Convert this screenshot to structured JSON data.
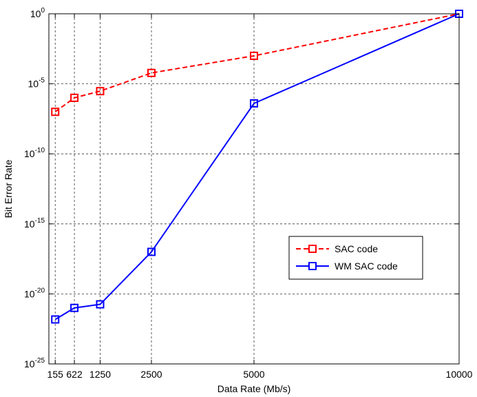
{
  "chart_data": {
    "type": "line",
    "xlabel": "Data Rate (Mb/s)",
    "ylabel": "Bit Error Rate",
    "x": [
      155,
      622,
      1250,
      2500,
      5000,
      10000
    ],
    "xticks": [
      155,
      622,
      1250,
      2500,
      5000,
      10000
    ],
    "xtick_labels": [
      "155",
      "622",
      "1250",
      "2500",
      "5000",
      "10000"
    ],
    "xlim": [
      0,
      10000
    ],
    "yscale": "log",
    "ylim": [
      1e-25,
      1
    ],
    "yticks": [
      {
        "base": "10",
        "exp": "0",
        "value": 1
      },
      {
        "base": "10",
        "exp": "-5",
        "value": 1e-05
      },
      {
        "base": "10",
        "exp": "-10",
        "value": 1e-10
      },
      {
        "base": "10",
        "exp": "-15",
        "value": 1e-15
      },
      {
        "base": "10",
        "exp": "-20",
        "value": 1e-20
      },
      {
        "base": "10",
        "exp": "-25",
        "value": 1e-25
      }
    ],
    "grid": true,
    "legend_position": "lower-right",
    "series": [
      {
        "name": "SAC code",
        "color": "#ff0000",
        "line_style": "dashed",
        "marker": "square",
        "values": [
          1e-07,
          1e-06,
          3e-06,
          6e-05,
          0.001,
          1
        ]
      },
      {
        "name": "WM SAC code",
        "color": "#0000ff",
        "line_style": "solid",
        "marker": "square",
        "values": [
          1.5e-22,
          1e-21,
          1.8e-21,
          1e-17,
          4e-07,
          1
        ]
      }
    ]
  }
}
